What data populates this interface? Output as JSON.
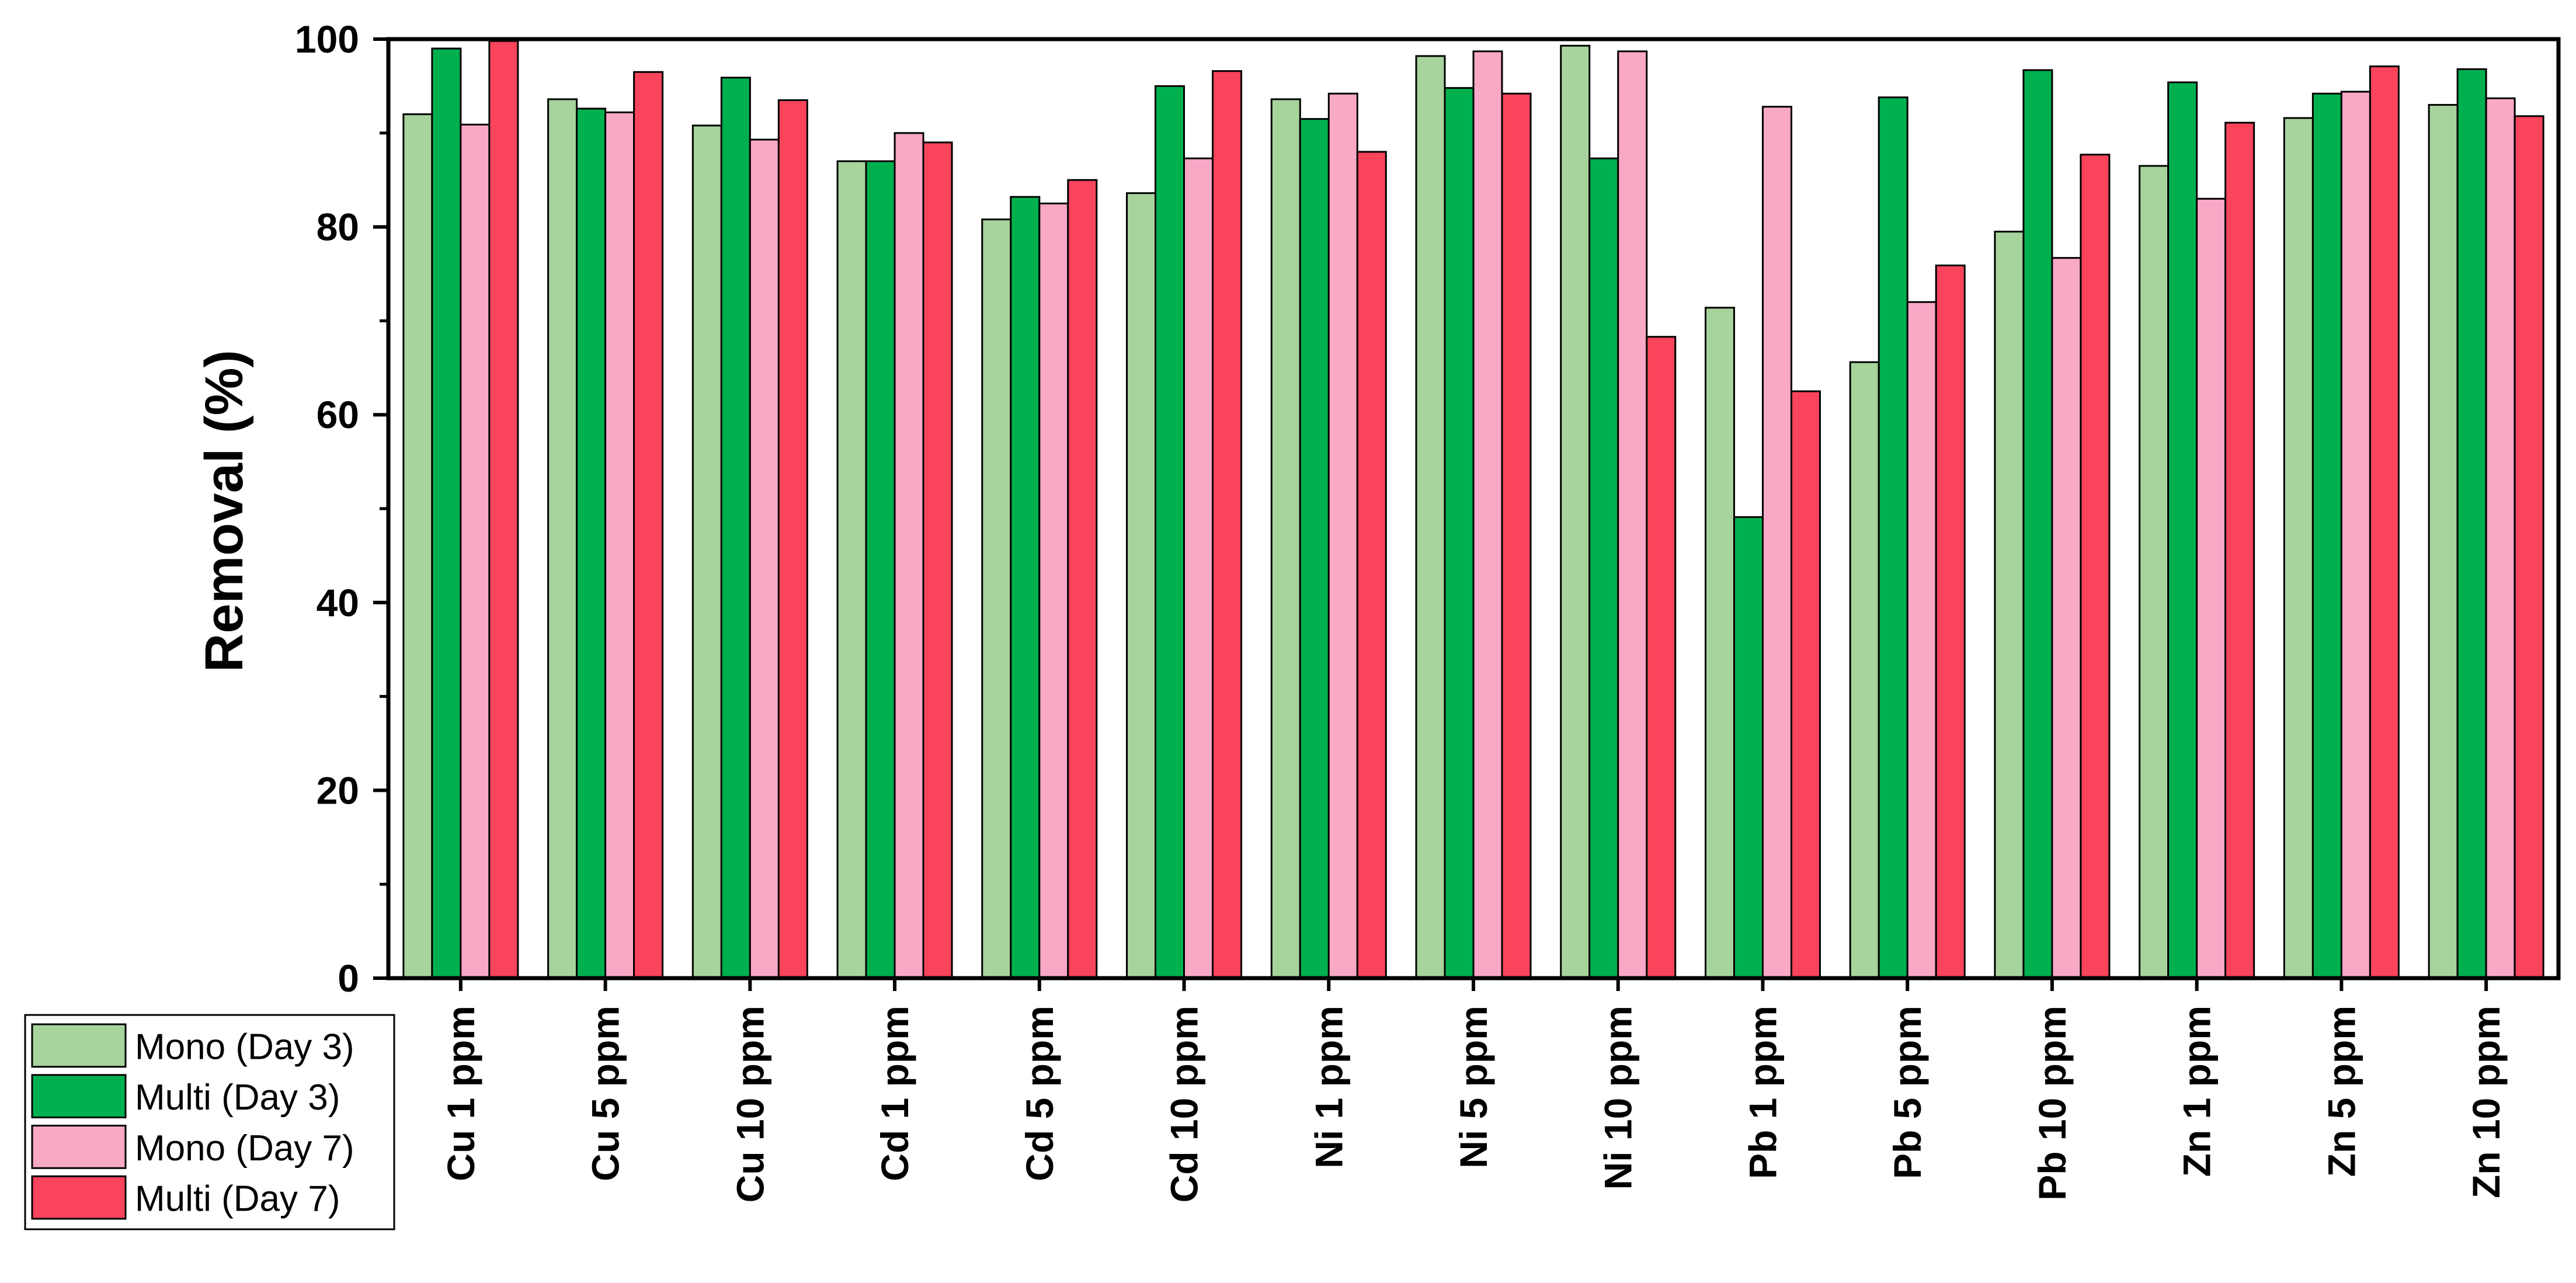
{
  "chart_data": {
    "type": "bar",
    "title": "",
    "xlabel": "",
    "ylabel": "Removal (%)",
    "ylim": [
      0,
      100
    ],
    "yticks": [
      0,
      20,
      40,
      60,
      80,
      100
    ],
    "yticks_labels": [
      "0",
      "20",
      "40",
      "60",
      "80",
      "100"
    ],
    "grid": false,
    "legend_position": "bottom-left, outside plot",
    "categories": [
      "Cu 1 ppm",
      "Cu 5 ppm",
      "Cu 10 ppm",
      "Cd 1 ppm",
      "Cd 5 ppm",
      "Cd 10 ppm",
      "Ni 1 ppm",
      "Ni 5 ppm",
      "Ni 10 ppm",
      "Pb 1 ppm",
      "Pb 5 ppm",
      "Pb 10 ppm",
      "Zn 1 ppm",
      "Zn 5 ppm",
      "Zn 10 ppm"
    ],
    "series": [
      {
        "name": "Mono (Day 3)",
        "color": "#a6d49c",
        "values": [
          92,
          93.6,
          90.8,
          87,
          80.8,
          83.6,
          93.6,
          98.2,
          99.3,
          71.4,
          65.6,
          79.5,
          86.5,
          91.6,
          93
        ]
      },
      {
        "name": "Multi (Day 3)",
        "color": "#00b04f",
        "values": [
          99,
          92.6,
          95.9,
          87,
          83.2,
          95,
          91.5,
          94.8,
          87.3,
          49.1,
          93.8,
          96.7,
          95.4,
          94.2,
          96.8
        ]
      },
      {
        "name": "Mono (Day 7)",
        "color": "#f9a8c6",
        "values": [
          90.9,
          92.2,
          89.3,
          90,
          82.5,
          87.3,
          94.2,
          98.7,
          98.7,
          92.8,
          72,
          76.7,
          83,
          94.4,
          93.7
        ]
      },
      {
        "name": "Multi (Day 7)",
        "color": "#f9445b",
        "values": [
          99.8,
          96.5,
          93.5,
          89,
          85,
          96.6,
          88,
          94.2,
          68.3,
          62.5,
          75.9,
          87.7,
          91.1,
          97.1,
          91.8
        ]
      }
    ]
  }
}
